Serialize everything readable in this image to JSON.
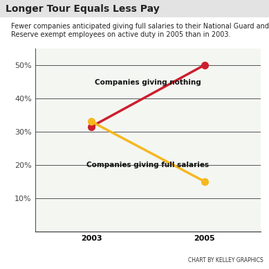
{
  "chart_data": {
    "type": "line",
    "title": "Longer Tour Equals Less Pay",
    "subtitle": "Fewer companies anticipated giving full salaries to their National Guard and Reserve exempt employees on active duty in 2005 than in 2003.",
    "categories": [
      "2003",
      "2005"
    ],
    "series": [
      {
        "name": "Companies giving nothing",
        "color": "#cc1f2d",
        "values": [
          31.5,
          50
        ]
      },
      {
        "name": "Companies giving full salaries",
        "color": "#f5b820",
        "values": [
          33,
          15
        ]
      }
    ],
    "marker": "o",
    "line_style": "solid",
    "ylim": [
      0,
      55
    ],
    "yticks": [
      {
        "value": 10,
        "label": "10%"
      },
      {
        "value": 20,
        "label": "20%"
      },
      {
        "value": 30,
        "label": "30%"
      },
      {
        "value": 40,
        "label": "40%"
      },
      {
        "value": 50,
        "label": "50%"
      }
    ],
    "grid": true,
    "annotations": [
      "CHART BY KELLEY GRAPHICS"
    ]
  }
}
